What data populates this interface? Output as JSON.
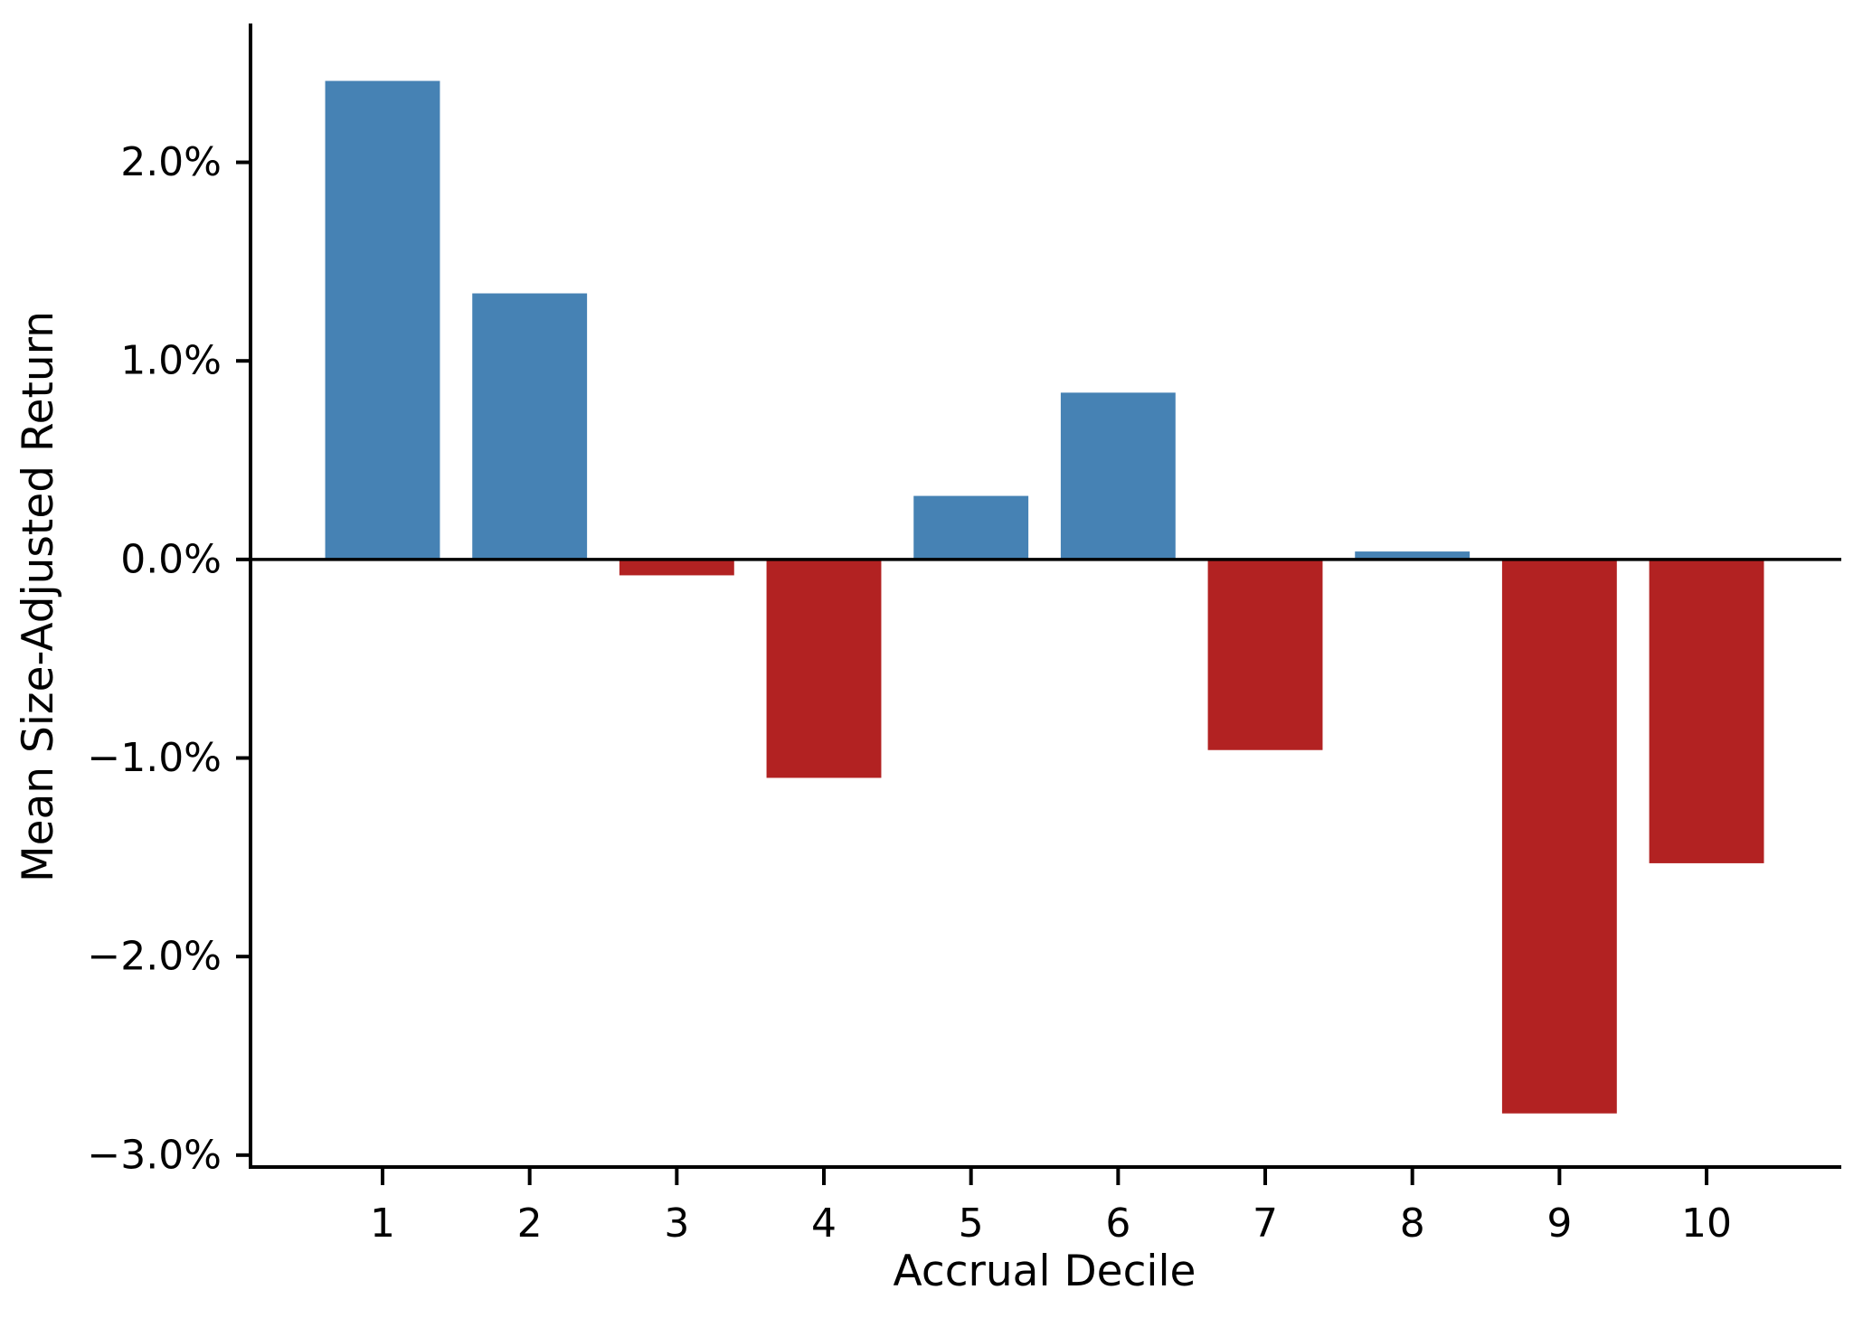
{
  "chart_data": {
    "type": "bar",
    "xlabel": "Accrual Decile",
    "ylabel": "Mean Size-Adjusted Return",
    "categories": [
      "1",
      "2",
      "3",
      "4",
      "5",
      "6",
      "7",
      "8",
      "9",
      "10"
    ],
    "values": [
      2.41,
      1.34,
      -0.08,
      -1.1,
      0.32,
      0.84,
      -0.96,
      0.04,
      -2.79,
      -1.53
    ],
    "value_unit": "percent",
    "colors": {
      "positive_bar": "#4682B4",
      "negative_bar": "#B22222",
      "axis": "#000000",
      "background": "#FFFFFF"
    },
    "y_ticks": [
      {
        "value": 2.0,
        "label": "2.0%"
      },
      {
        "value": 1.0,
        "label": "1.0%"
      },
      {
        "value": 0.0,
        "label": "0.0%"
      },
      {
        "value": -1.0,
        "label": "−1.0%"
      },
      {
        "value": -2.0,
        "label": "−2.0%"
      },
      {
        "value": -3.0,
        "label": "−3.0%"
      }
    ],
    "ylim": [
      -3.06,
      2.69
    ],
    "bar_width_fraction": 0.78,
    "grid": false,
    "legend": false,
    "zero_line": true
  }
}
